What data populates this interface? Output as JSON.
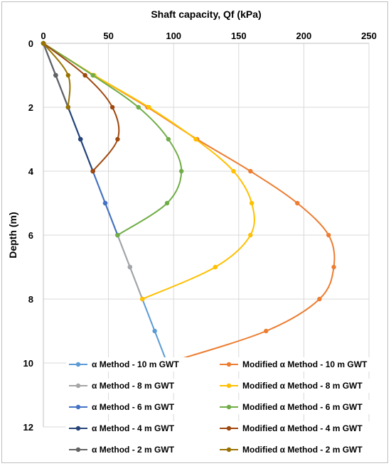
{
  "chart_data": {
    "type": "line",
    "title": "",
    "xlabel": "Shaft capacity, Qf (kPa)",
    "ylabel": "Depth (m)",
    "xlim": [
      0,
      250
    ],
    "ylim": [
      0,
      12
    ],
    "y_inverted": true,
    "x_axis_position": "top",
    "xticks": [
      "0",
      "50",
      "100",
      "150",
      "200",
      "250"
    ],
    "yticks": [
      "0",
      "2",
      "4",
      "6",
      "8",
      "10",
      "12"
    ],
    "grid": true,
    "legend_position": "bottom-inside",
    "series": [
      {
        "name": "α Method - 10 m GWT",
        "color": "#5b9bd5",
        "points": [
          [
            0,
            0
          ],
          [
            9.5,
            1
          ],
          [
            19,
            2
          ],
          [
            28.5,
            3
          ],
          [
            38,
            4
          ],
          [
            47.5,
            5
          ],
          [
            57,
            6
          ],
          [
            66.5,
            7
          ],
          [
            76,
            8
          ],
          [
            85.5,
            9
          ],
          [
            95,
            10
          ]
        ]
      },
      {
        "name": "Modified α Method - 10 m GWT",
        "color": "#ed7d31",
        "points": [
          [
            0,
            0
          ],
          [
            39,
            1
          ],
          [
            80,
            2
          ],
          [
            118,
            3
          ],
          [
            159,
            4
          ],
          [
            195,
            5
          ],
          [
            219,
            6
          ],
          [
            223,
            7
          ],
          [
            212,
            8
          ],
          [
            171,
            9
          ],
          [
            95,
            10
          ]
        ]
      },
      {
        "name": "α Method - 8 m GWT",
        "color": "#a5a5a5",
        "points": [
          [
            0,
            0
          ],
          [
            9.5,
            1
          ],
          [
            19,
            2
          ],
          [
            28.5,
            3
          ],
          [
            38,
            4
          ],
          [
            47.5,
            5
          ],
          [
            57,
            6
          ],
          [
            66.5,
            7
          ],
          [
            76,
            8
          ]
        ]
      },
      {
        "name": "Modified α Method - 8 m GWT",
        "color": "#ffc000",
        "points": [
          [
            0,
            0
          ],
          [
            39,
            1
          ],
          [
            81,
            2
          ],
          [
            117,
            3
          ],
          [
            146,
            4
          ],
          [
            160,
            5
          ],
          [
            159,
            6
          ],
          [
            132,
            7
          ],
          [
            76,
            8
          ]
        ]
      },
      {
        "name": "α Method - 6 m GWT",
        "color": "#4472c4",
        "points": [
          [
            0,
            0
          ],
          [
            9.5,
            1
          ],
          [
            19,
            2
          ],
          [
            28.5,
            3
          ],
          [
            38,
            4
          ],
          [
            47.5,
            5
          ],
          [
            57,
            6
          ]
        ]
      },
      {
        "name": "Modified α Method - 6 m GWT",
        "color": "#70ad47",
        "points": [
          [
            0,
            0
          ],
          [
            38,
            1
          ],
          [
            73,
            2
          ],
          [
            96,
            3
          ],
          [
            106,
            4
          ],
          [
            95,
            5
          ],
          [
            57,
            6
          ]
        ]
      },
      {
        "name": "α Method - 4 m GWT",
        "color": "#264478",
        "points": [
          [
            0,
            0
          ],
          [
            9.5,
            1
          ],
          [
            19,
            2
          ],
          [
            28.5,
            3
          ],
          [
            38,
            4
          ]
        ]
      },
      {
        "name": "Modified α Method - 4 m GWT",
        "color": "#9e480e",
        "points": [
          [
            0,
            0
          ],
          [
            32,
            1
          ],
          [
            53,
            2
          ],
          [
            57,
            3
          ],
          [
            38,
            4
          ]
        ]
      },
      {
        "name": "α Method - 2 m GWT",
        "color": "#636363",
        "points": [
          [
            0,
            0
          ],
          [
            9.5,
            1
          ],
          [
            19,
            2
          ]
        ]
      },
      {
        "name": "Modified α Method - 2 m GWT",
        "color": "#997300",
        "points": [
          [
            0,
            0
          ],
          [
            19,
            1
          ],
          [
            19,
            2
          ]
        ]
      }
    ]
  }
}
